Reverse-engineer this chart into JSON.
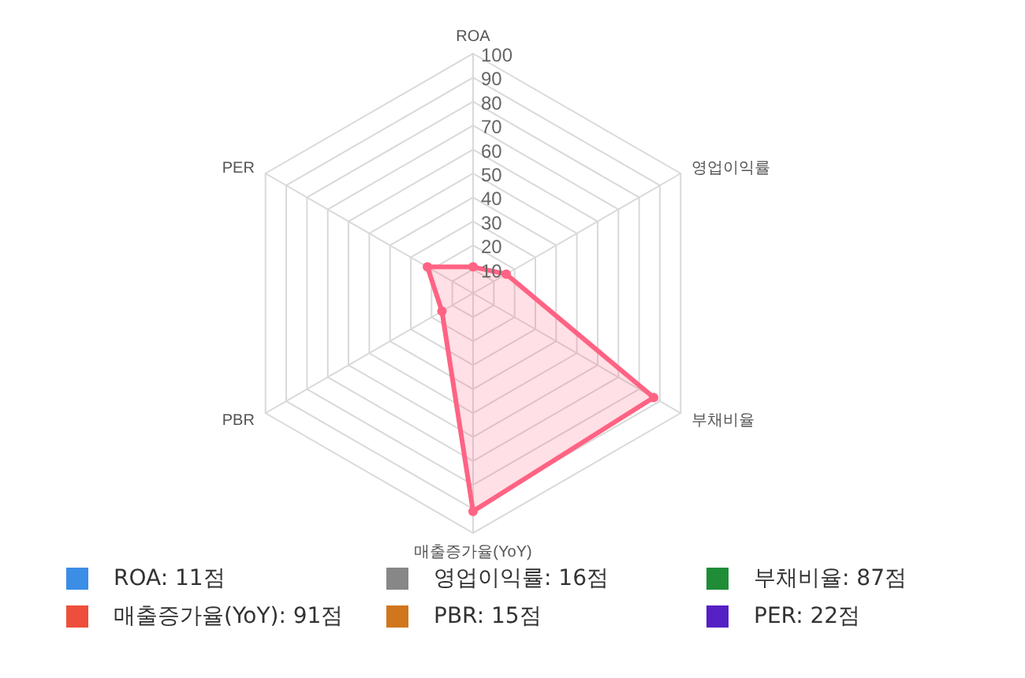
{
  "chart_data": {
    "type": "radar",
    "categories": [
      "ROA",
      "영업이익률",
      "부채비율",
      "매출증가율(YoY)",
      "PBR",
      "PER"
    ],
    "series": [
      {
        "color": "#ff6384",
        "values": [
          11,
          16,
          87,
          91,
          15,
          22
        ]
      }
    ],
    "colors": [
      "#3b8de6",
      "#878787",
      "#1f8c38",
      "#ee4f3c",
      "#d0761d",
      "#5520c4"
    ],
    "value_labels": [
      "ROA: 11점",
      "영업이익률: 16점",
      "부채비율: 87점",
      "매출증가율(YoY): 91점",
      "PBR: 15점",
      "PER: 22점"
    ],
    "ylim": [
      0,
      100
    ],
    "yticks": [
      10,
      20,
      30,
      40,
      50,
      60,
      70,
      80,
      90,
      100
    ],
    "grid": true,
    "marker": "circle"
  }
}
